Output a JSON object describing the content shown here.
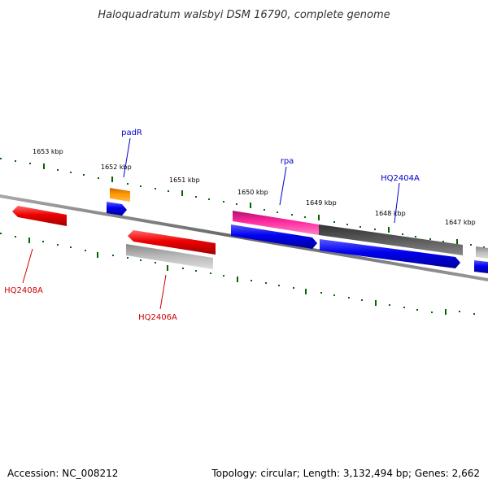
{
  "title": "Haloquadratum walsbyi DSM 16790, complete genome",
  "footer": {
    "accession": "Accession: NC_008212",
    "summary": "Topology: circular; Length: 3,132,494 bp; Genes: 2,662"
  },
  "scale_labels": [
    "1653 kbp",
    "1652 kbp",
    "1651 kbp",
    "1650 kbp",
    "1649 kbp",
    "1648 kbp",
    "1647 kbp"
  ],
  "gene_labels": [
    {
      "id": "padR",
      "text": "padR",
      "color": "#0000cc"
    },
    {
      "id": "rpa",
      "text": "rpa",
      "color": "#0000cc"
    },
    {
      "id": "HQ2404A",
      "text": "HQ2404A",
      "color": "#0000cc"
    },
    {
      "id": "HQ2408A",
      "text": "HQ2408A",
      "color": "#cc0000"
    },
    {
      "id": "HQ2406A",
      "text": "HQ2406A",
      "color": "#cc0000"
    }
  ],
  "colors": {
    "forward_gene": "#0000ee",
    "reverse_gene": "#ee0000",
    "rrna_gene": "#ff8800",
    "pink_feature": "#ee2299",
    "gray_feature": "#555555",
    "light_gray_feature": "#bbbbbb",
    "backbone": "#888888",
    "tick": "#006600"
  }
}
